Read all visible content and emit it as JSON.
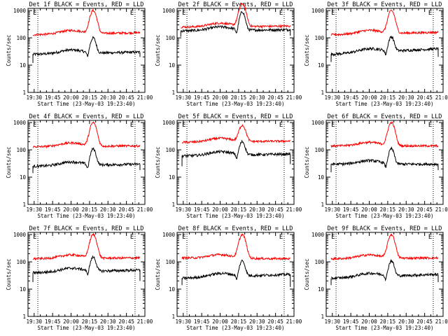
{
  "figure": {
    "ylabel": "Counts/sec",
    "xlabel": "Start Time (23-May-03 19:23:40)",
    "x_ticks": [
      "19:30",
      "19:45",
      "20:00",
      "20:15",
      "20:30",
      "20:45",
      "21:00"
    ],
    "y_ticks": [
      "1",
      "10",
      "100",
      "1000"
    ],
    "marker_label": "E",
    "colors": {
      "events": "#000000",
      "lld": "#ff0000",
      "marker": "#000000"
    }
  },
  "chart_data": [
    {
      "type": "line",
      "title": "Det 1f BLACK = Events, RED = LLD",
      "xlim": [
        "19:25",
        "21:00"
      ],
      "yscale": "log",
      "ylim": [
        1,
        1200
      ],
      "markers": [
        "19:33",
        "20:52"
      ],
      "x_start": "19:29",
      "x_end": "20:56",
      "peak_x": "20:18",
      "series": [
        {
          "name": "BLACK = Events",
          "base_start": 25,
          "base_end": 30,
          "peak": 100,
          "start_dip": 12,
          "end_dip": 20
        },
        {
          "name": "RED = LLD",
          "base_start": 130,
          "base_end": 155,
          "peak": 1000
        }
      ]
    },
    {
      "type": "line",
      "title": "Det 2f BLACK = Events, RED = LLD",
      "xlim": [
        "19:25",
        "21:00"
      ],
      "yscale": "log",
      "ylim": [
        1,
        1200
      ],
      "markers": [
        "19:33",
        "20:52"
      ],
      "x_start": "19:28",
      "x_end": "20:57",
      "peak_x": "20:18",
      "series": [
        {
          "name": "BLACK = Events",
          "base_start": 180,
          "base_end": 200,
          "peak": 900,
          "start_dip": 110,
          "end_dip": 120
        },
        {
          "name": "RED = LLD",
          "base_start": 250,
          "base_end": 270,
          "peak": 1800
        }
      ]
    },
    {
      "type": "line",
      "title": "Det 3f BLACK = Events, RED = LLD",
      "xlim": [
        "19:25",
        "21:00"
      ],
      "yscale": "log",
      "ylim": [
        1,
        1200
      ],
      "markers": [
        "19:33",
        "20:52"
      ],
      "x_start": "19:29",
      "x_end": "20:56",
      "peak_x": "20:18",
      "series": [
        {
          "name": "BLACK = Events",
          "base_start": 25,
          "base_end": 40,
          "peak": 110,
          "start_dip": 13,
          "end_dip": 20
        },
        {
          "name": "RED = LLD",
          "base_start": 130,
          "base_end": 160,
          "peak": 1000
        }
      ]
    },
    {
      "type": "line",
      "title": "Det 4f BLACK = Events, RED = LLD",
      "xlim": [
        "19:25",
        "21:00"
      ],
      "yscale": "log",
      "ylim": [
        1,
        1200
      ],
      "markers": [
        "19:33",
        "20:52"
      ],
      "x_start": "19:29",
      "x_end": "20:56",
      "peak_x": "20:18",
      "series": [
        {
          "name": "BLACK = Events",
          "base_start": 25,
          "base_end": 30,
          "peak": 110,
          "start_dip": 14,
          "end_dip": 18
        },
        {
          "name": "RED = LLD",
          "base_start": 130,
          "base_end": 140,
          "peak": 1000
        }
      ]
    },
    {
      "type": "line",
      "title": "Det 5f BLACK = Events, RED = LLD",
      "xlim": [
        "19:25",
        "21:00"
      ],
      "yscale": "log",
      "ylim": [
        1,
        1200
      ],
      "markers": [
        "19:33",
        "20:52"
      ],
      "x_start": "19:29",
      "x_end": "20:57",
      "peak_x": "20:18",
      "series": [
        {
          "name": "BLACK = Events",
          "base_start": 60,
          "base_end": 70,
          "peak": 200,
          "start_dip": 25,
          "end_dip": 30
        },
        {
          "name": "RED = LLD",
          "base_start": 190,
          "base_end": 210,
          "peak": 800
        }
      ]
    },
    {
      "type": "line",
      "title": "Det 6f BLACK = Events, RED = LLD",
      "xlim": [
        "19:25",
        "21:00"
      ],
      "yscale": "log",
      "ylim": [
        1,
        1200
      ],
      "markers": [
        "19:33",
        "20:52"
      ],
      "x_start": "19:29",
      "x_end": "20:56",
      "peak_x": "20:18",
      "series": [
        {
          "name": "BLACK = Events",
          "base_start": 30,
          "base_end": 30,
          "peak": 110,
          "start_dip": 15,
          "end_dip": 18
        },
        {
          "name": "RED = LLD",
          "base_start": 140,
          "base_end": 140,
          "peak": 1000
        }
      ]
    },
    {
      "type": "line",
      "title": "Det 7f BLACK = Events, RED = LLD",
      "xlim": [
        "19:25",
        "21:00"
      ],
      "yscale": "log",
      "ylim": [
        1,
        1200
      ],
      "markers": [
        "19:33",
        "20:52"
      ],
      "x_start": "19:29",
      "x_end": "20:56",
      "peak_x": "20:18",
      "series": [
        {
          "name": "BLACK = Events",
          "base_start": 40,
          "base_end": 50,
          "peak": 150,
          "start_dip": 18,
          "end_dip": 20
        },
        {
          "name": "RED = LLD",
          "base_start": 130,
          "base_end": 140,
          "peak": 1000
        }
      ]
    },
    {
      "type": "line",
      "title": "Det 8f BLACK = Events, RED = LLD",
      "xlim": [
        "19:25",
        "21:00"
      ],
      "yscale": "log",
      "ylim": [
        1,
        1200
      ],
      "markers": [
        "19:33",
        "20:52"
      ],
      "x_start": "19:29",
      "x_end": "20:57",
      "peak_x": "20:18",
      "series": [
        {
          "name": "BLACK = Events",
          "base_start": 25,
          "base_end": 35,
          "peak": 110,
          "start_dip": 14,
          "end_dip": 12
        },
        {
          "name": "RED = LLD",
          "base_start": 140,
          "base_end": 130,
          "peak": 1000
        }
      ]
    },
    {
      "type": "line",
      "title": "Det 9f BLACK = Events, RED = LLD",
      "xlim": [
        "19:25",
        "21:00"
      ],
      "yscale": "log",
      "ylim": [
        1,
        1200
      ],
      "markers": [
        "19:33",
        "20:52"
      ],
      "x_start": "19:29",
      "x_end": "20:56",
      "peak_x": "20:18",
      "series": [
        {
          "name": "BLACK = Events",
          "base_start": 25,
          "base_end": 35,
          "peak": 110,
          "start_dip": 14,
          "end_dip": 18
        },
        {
          "name": "RED = LLD",
          "base_start": 130,
          "base_end": 140,
          "peak": 1000
        }
      ]
    }
  ]
}
